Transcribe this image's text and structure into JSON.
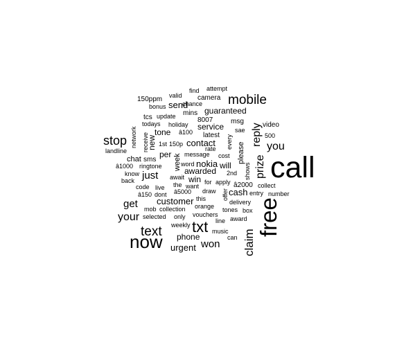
{
  "chart_data": {
    "type": "wordcloud",
    "color": "#000000",
    "background": "#ffffff",
    "words": [
      {
        "text": "call"
      },
      {
        "text": "free"
      },
      {
        "text": "now"
      },
      {
        "text": "txt"
      },
      {
        "text": "mobile"
      },
      {
        "text": "text"
      },
      {
        "text": "stop"
      },
      {
        "text": "claim"
      },
      {
        "text": "reply"
      },
      {
        "text": "prize"
      },
      {
        "text": "your"
      },
      {
        "text": "you"
      },
      {
        "text": "get"
      },
      {
        "text": "won"
      },
      {
        "text": "just"
      },
      {
        "text": "send"
      },
      {
        "text": "contact"
      },
      {
        "text": "nokia"
      },
      {
        "text": "customer"
      },
      {
        "text": "urgent"
      },
      {
        "text": "service"
      },
      {
        "text": "guaranteed"
      },
      {
        "text": "tone"
      },
      {
        "text": "new"
      },
      {
        "text": "win"
      },
      {
        "text": "cash"
      },
      {
        "text": "phone"
      },
      {
        "text": "awarded"
      },
      {
        "text": "will"
      },
      {
        "text": "week"
      },
      {
        "text": "please"
      },
      {
        "text": "per"
      },
      {
        "text": "chat"
      },
      {
        "text": "camera"
      },
      {
        "text": "150ppm"
      },
      {
        "text": "mins"
      },
      {
        "text": "8007"
      },
      {
        "text": "latest"
      },
      {
        "text": "video"
      },
      {
        "text": "msg"
      },
      {
        "text": "tcs"
      },
      {
        "text": "holiday"
      },
      {
        "text": "â100"
      },
      {
        "text": "sae"
      },
      {
        "text": "500"
      },
      {
        "text": "every"
      },
      {
        "text": "network"
      },
      {
        "text": "receive"
      },
      {
        "text": "1st"
      },
      {
        "text": "150p"
      },
      {
        "text": "message"
      },
      {
        "text": "rate"
      },
      {
        "text": "cost"
      },
      {
        "text": "shows"
      },
      {
        "text": "landline"
      },
      {
        "text": "sms"
      },
      {
        "text": "â1000"
      },
      {
        "text": "ringtone"
      },
      {
        "text": "word"
      },
      {
        "text": "know"
      },
      {
        "text": "back"
      },
      {
        "text": "await"
      },
      {
        "text": "the"
      },
      {
        "text": "want"
      },
      {
        "text": "for"
      },
      {
        "text": "apply"
      },
      {
        "text": "â2000"
      },
      {
        "text": "collect"
      },
      {
        "text": "code"
      },
      {
        "text": "live"
      },
      {
        "text": "draw"
      },
      {
        "text": "2nd"
      },
      {
        "text": "â150"
      },
      {
        "text": "dont"
      },
      {
        "text": "â5000"
      },
      {
        "text": "this"
      },
      {
        "text": "offer"
      },
      {
        "text": "entry"
      },
      {
        "text": "number"
      },
      {
        "text": "delivery"
      },
      {
        "text": "mob"
      },
      {
        "text": "collection"
      },
      {
        "text": "orange"
      },
      {
        "text": "tones"
      },
      {
        "text": "box"
      },
      {
        "text": "selected"
      },
      {
        "text": "only"
      },
      {
        "text": "vouchers"
      },
      {
        "text": "line"
      },
      {
        "text": "award"
      },
      {
        "text": "weekly"
      },
      {
        "text": "music"
      },
      {
        "text": "can"
      },
      {
        "text": "attempt"
      },
      {
        "text": "find"
      },
      {
        "text": "valid"
      },
      {
        "text": "chance"
      },
      {
        "text": "bonus"
      },
      {
        "text": "update"
      },
      {
        "text": "todays"
      }
    ]
  }
}
